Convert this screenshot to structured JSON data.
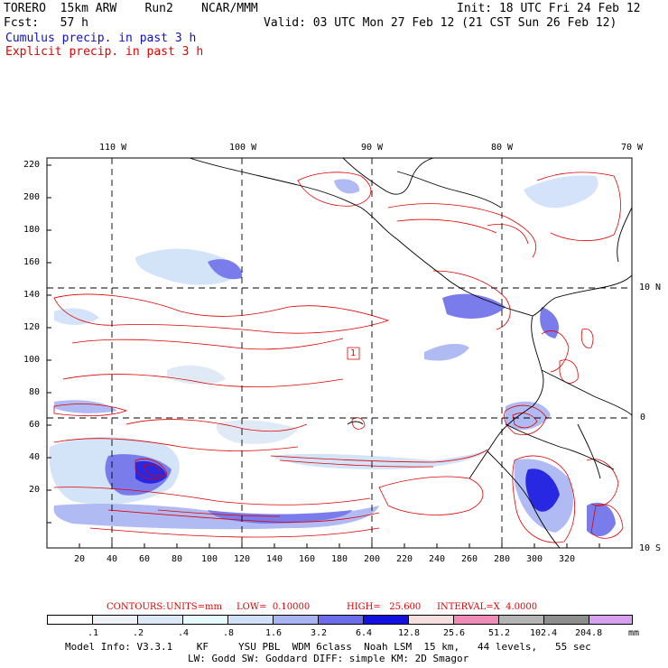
{
  "header": {
    "model": "TORERO  15km ARW    Run2    NCAR/MMM",
    "init": "Init: 18 UTC Fri 24 Feb 12",
    "fcst": "Fcst:   57 h",
    "valid": "Valid: 03 UTC Mon 27 Feb 12 (21 CST Sun 26 Feb 12)",
    "cumulus": "Cumulus precip. in past 3 h",
    "explicit": "Explicit precip. in past 3 h"
  },
  "map": {
    "lon_labels": [
      "110 W",
      "100 W",
      "90 W",
      "80 W",
      "70 W"
    ],
    "lat_labels": [
      "10 N",
      "0",
      "10 S"
    ],
    "y_ticks": [
      "220",
      "200",
      "180",
      "160",
      "140",
      "120",
      "100",
      "80",
      "60",
      "40",
      "20"
    ],
    "x_ticks": [
      "20",
      "40",
      "60",
      "80",
      "100",
      "120",
      "140",
      "160",
      "180",
      "200",
      "220",
      "240",
      "260",
      "280",
      "300",
      "320"
    ],
    "box_label": "1"
  },
  "contours": {
    "contours_label": "CONTOURS:",
    "units": "UNITS=mm",
    "low": "LOW=  0.10000",
    "high": "HIGH=   25.600",
    "interval": "INTERVAL=X  4.0000"
  },
  "colorbar": {
    "labels": [
      ".1",
      ".2",
      ".4",
      ".8",
      "1.6",
      "3.2",
      "6.4",
      "12.8",
      "25.6",
      "51.2",
      "102.4",
      "204.8"
    ],
    "unit": "mm",
    "colors": [
      "#ffffff",
      "#eef2f8",
      "#dde8f6",
      "#e6fbff",
      "#cfe0f8",
      "#a9b4f2",
      "#6b6ee8",
      "#1111e0",
      "#f7dede",
      "#f08cb8",
      "#b4b4b4",
      "#8e8e8e",
      "#d6a0ef"
    ]
  },
  "footer": {
    "line1": "Model Info: V3.3.1    KF     YSU PBL  WDM 6class  Noah LSM  15 km,   44 levels,   55 sec",
    "line2": "LW: Godd SW: Goddard DIFF: simple KM: 2D Smagor"
  }
}
